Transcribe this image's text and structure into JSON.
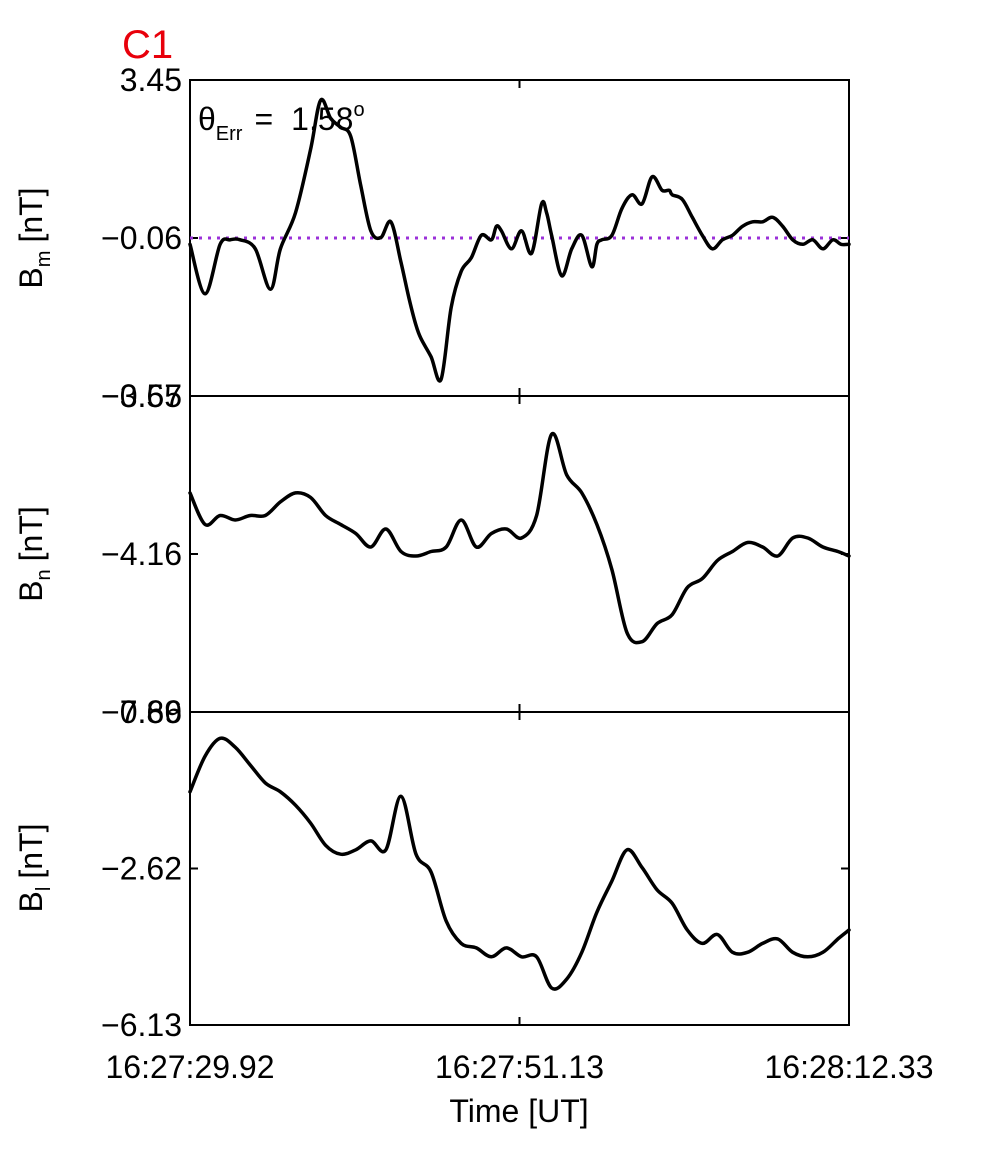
{
  "figure": {
    "label": "C1",
    "label_color": "#e8000b",
    "annotation": {
      "symbol": "θ",
      "sub": "Err",
      "equals": "=",
      "value": "1.58",
      "sup": "o"
    }
  },
  "chart_data": [
    {
      "type": "line",
      "ylabel": {
        "main": "B",
        "sub": "m",
        "unit": "[nT]"
      },
      "yticks": [
        "3.45",
        "-0.06",
        "-3.57"
      ],
      "ylim": [
        -3.57,
        3.45
      ],
      "reference_line": {
        "y": -0.06,
        "style": "dotted",
        "color": "#9b30d9"
      },
      "x": [
        0,
        1.5,
        3,
        4,
        5,
        6.5,
        8,
        9,
        10.5,
        12,
        13,
        14,
        15,
        16,
        17,
        18,
        19,
        20,
        21,
        21.8,
        22.5,
        23,
        24,
        25,
        26,
        27,
        28,
        29,
        30,
        30.5,
        31,
        32,
        33,
        34,
        35,
        35.5,
        36,
        37,
        38,
        39,
        40,
        40.5,
        41,
        42,
        43,
        44,
        45,
        46,
        47,
        47.7,
        48,
        49,
        50,
        51,
        52,
        53,
        54,
        55,
        56,
        57,
        58,
        59,
        60,
        61,
        62,
        63,
        64,
        64.8,
        65.6
      ],
      "y": [
        -0.2,
        -1.3,
        -0.2,
        -0.1,
        -0.1,
        -0.3,
        -1.2,
        -0.3,
        0.5,
        1.9,
        3.0,
        2.6,
        2.4,
        2.2,
        1.1,
        0.1,
        -0.05,
        0.3,
        -0.6,
        -1.4,
        -2.0,
        -2.3,
        -2.7,
        -3.2,
        -1.6,
        -0.8,
        -0.5,
        0.0,
        -0.1,
        0.2,
        0.1,
        -0.3,
        0.1,
        -0.4,
        0.7,
        0.5,
        0.0,
        -0.9,
        -0.3,
        0.0,
        -0.7,
        -0.2,
        -0.1,
        0.0,
        0.6,
        0.9,
        0.7,
        1.3,
        1.0,
        1.0,
        0.9,
        0.8,
        0.4,
        0.0,
        -0.3,
        -0.1,
        0.0,
        0.2,
        0.3,
        0.3,
        0.4,
        0.2,
        -0.1,
        -0.2,
        -0.1,
        -0.3,
        -0.1,
        -0.2,
        -0.2
      ]
    },
    {
      "type": "line",
      "ylabel": {
        "main": "B",
        "sub": "n",
        "unit": "[nT]"
      },
      "yticks": [
        "-0.65",
        "-4.16",
        "-7.66"
      ],
      "ylim": [
        -7.66,
        -0.65
      ],
      "x": [
        0,
        1.5,
        3,
        4.5,
        6,
        7.5,
        9,
        10.5,
        12,
        13.5,
        15,
        16.5,
        18,
        19.5,
        21,
        22.5,
        24,
        25.5,
        27,
        28.5,
        30,
        31.5,
        33,
        34.5,
        36,
        37.5,
        39,
        40.5,
        42,
        43.5,
        45,
        46.5,
        48,
        49.5,
        51,
        52.5,
        54,
        55.5,
        57,
        58.5,
        60,
        61.5,
        63,
        64.5,
        65.6
      ],
      "y": [
        -2.8,
        -3.5,
        -3.3,
        -3.4,
        -3.3,
        -3.3,
        -3.0,
        -2.8,
        -2.9,
        -3.3,
        -3.5,
        -3.7,
        -4.0,
        -3.6,
        -4.1,
        -4.2,
        -4.1,
        -4.0,
        -3.4,
        -4.0,
        -3.7,
        -3.6,
        -3.8,
        -3.3,
        -1.5,
        -2.4,
        -2.8,
        -3.5,
        -4.5,
        -5.9,
        -6.1,
        -5.7,
        -5.5,
        -4.9,
        -4.7,
        -4.3,
        -4.1,
        -3.9,
        -4.0,
        -4.2,
        -3.8,
        -3.8,
        -4.0,
        -4.1,
        -4.2
      ]
    },
    {
      "type": "line",
      "ylabel": {
        "main": "B",
        "sub": "l",
        "unit": "[nT]"
      },
      "yticks": [
        "0.89",
        "-2.62",
        "-6.13"
      ],
      "ylim": [
        -6.13,
        0.89
      ],
      "x": [
        0,
        1.5,
        3,
        4.5,
        6,
        7.5,
        9,
        10.5,
        12,
        13.5,
        15,
        16.5,
        18,
        19.5,
        21,
        22.5,
        24,
        25.5,
        27,
        28.5,
        30,
        31.5,
        33,
        34.5,
        36,
        37.5,
        39,
        40.5,
        42,
        43.5,
        45,
        46.5,
        48,
        49.5,
        51,
        52.5,
        54,
        55.5,
        57,
        58.5,
        60,
        61.5,
        63,
        64.5,
        65.6
      ],
      "y": [
        -0.9,
        -0.1,
        0.3,
        0.1,
        -0.3,
        -0.7,
        -0.9,
        -1.2,
        -1.6,
        -2.1,
        -2.3,
        -2.2,
        -2.0,
        -2.2,
        -1.0,
        -2.3,
        -2.7,
        -3.8,
        -4.3,
        -4.4,
        -4.6,
        -4.4,
        -4.6,
        -4.6,
        -5.3,
        -5.1,
        -4.5,
        -3.6,
        -2.9,
        -2.2,
        -2.6,
        -3.1,
        -3.4,
        -4.0,
        -4.3,
        -4.1,
        -4.5,
        -4.5,
        -4.3,
        -4.2,
        -4.5,
        -4.6,
        -4.5,
        -4.2,
        -4.0
      ]
    }
  ],
  "xaxis": {
    "label": "Time [UT]",
    "xlim": [
      0,
      65.6
    ],
    "tick_positions": [
      0,
      32.8,
      65.6
    ],
    "tick_labels": [
      "16:27:29.92",
      "16:27:51.13",
      "16:28:12.33"
    ]
  }
}
